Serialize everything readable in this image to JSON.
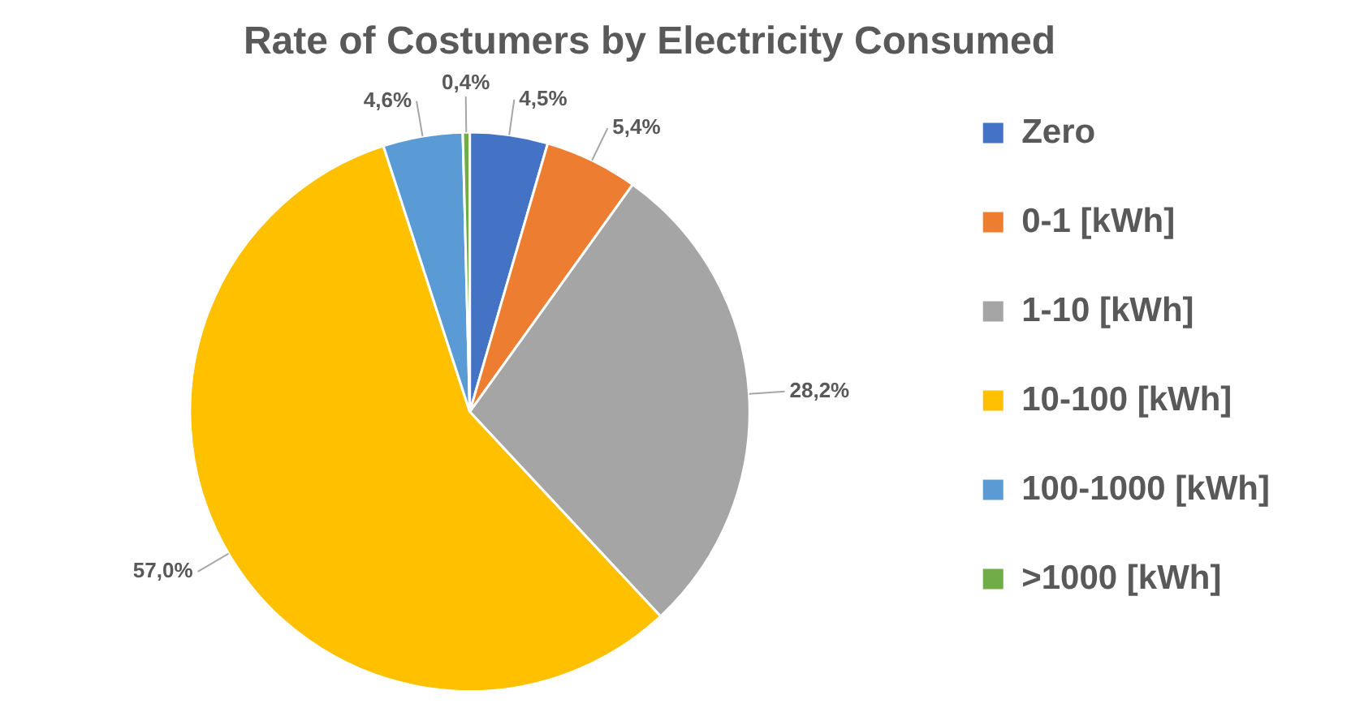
{
  "chart_data": {
    "type": "pie",
    "title": "Rate of Costumers by Electricity Consumed",
    "categories": [
      "Zero",
      "0-1 [kWh]",
      "1-10 [kWh]",
      "10-100 [kWh]",
      "100-1000 [kWh]",
      ">1000 [kWh]"
    ],
    "values": [
      4.5,
      5.4,
      28.2,
      57.0,
      4.6,
      0.4
    ],
    "colors": [
      "#4472c4",
      "#ed7d31",
      "#a5a5a5",
      "#ffc000",
      "#5b9bd5",
      "#70ad47"
    ],
    "value_labels": [
      "4,5%",
      "5,4%",
      "28,2%",
      "57,0%",
      "4,6%",
      "0,4%"
    ],
    "legend": "right"
  }
}
